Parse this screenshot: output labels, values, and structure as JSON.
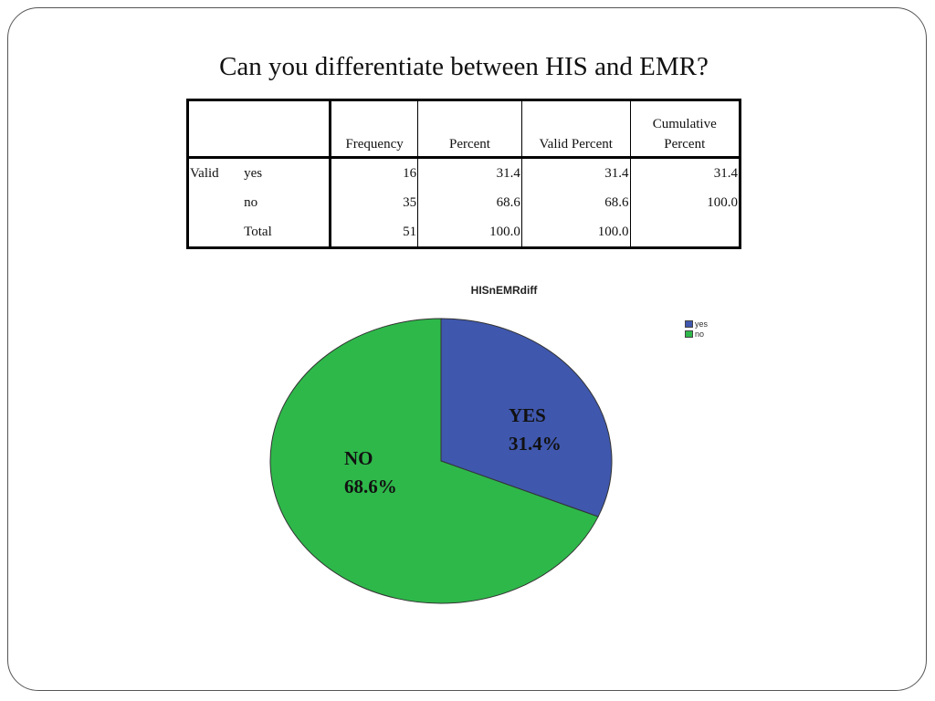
{
  "slide": {
    "title": "Can you differentiate between HIS and EMR?"
  },
  "table": {
    "headers": [
      "",
      "",
      "Frequency",
      "Percent",
      "Valid Percent",
      "Cumulative Percent"
    ],
    "header_cumulative_line1": "Cumulative",
    "header_cumulative_line2": "Percent",
    "group_label": "Valid",
    "rows": [
      {
        "label": "yes",
        "frequency": "16",
        "percent": "31.4",
        "valid_percent": "31.4",
        "cumulative_percent": "31.4"
      },
      {
        "label": "no",
        "frequency": "35",
        "percent": "68.6",
        "valid_percent": "68.6",
        "cumulative_percent": "100.0"
      },
      {
        "label": "Total",
        "frequency": "51",
        "percent": "100.0",
        "valid_percent": "100.0",
        "cumulative_percent": ""
      }
    ]
  },
  "chart_data": {
    "type": "pie",
    "title": "HISnEMRdiff",
    "categories": [
      "yes",
      "no"
    ],
    "values": [
      31.4,
      68.6
    ],
    "colors": [
      "#3f57ad",
      "#2eb84a"
    ],
    "slice_labels": [
      {
        "name": "YES",
        "percent": "31.4%"
      },
      {
        "name": "NO",
        "percent": "68.6%"
      }
    ],
    "legend": {
      "placement": "top-right",
      "entries": [
        "yes",
        "no"
      ]
    }
  }
}
